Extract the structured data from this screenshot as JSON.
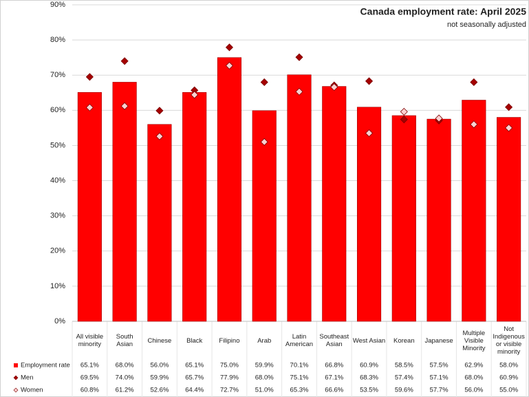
{
  "chart_data": {
    "type": "bar",
    "title": "Canada employment rate: April 2025",
    "subtitle": "not seasonally adjusted",
    "categories": [
      "All visible minority",
      "South Asian",
      "Chinese",
      "Black",
      "Filipino",
      "Arab",
      "Latin American",
      "Southeast Asian",
      "West Asian",
      "Korean",
      "Japanese",
      "Multiple Visible Minority",
      "Not Indigenous or visible minority"
    ],
    "series": [
      {
        "name": "Employment rate",
        "mark": "bar",
        "color": "#ff0000",
        "values": [
          65.1,
          68.0,
          56.0,
          65.1,
          75.0,
          59.9,
          70.1,
          66.8,
          60.9,
          58.5,
          57.5,
          62.9,
          58.0
        ],
        "value_labels": [
          "65.1%",
          "68.0%",
          "56.0%",
          "65.1%",
          "75.0%",
          "59.9%",
          "70.1%",
          "66.8%",
          "60.9%",
          "58.5%",
          "57.5%",
          "62.9%",
          "58.0%"
        ]
      },
      {
        "name": "Men",
        "mark": "diamond",
        "color": "#a50000",
        "values": [
          69.5,
          74.0,
          59.9,
          65.7,
          77.9,
          68.0,
          75.1,
          67.1,
          68.3,
          57.4,
          57.1,
          68.0,
          60.9
        ],
        "value_labels": [
          "69.5%",
          "74.0%",
          "59.9%",
          "65.7%",
          "77.9%",
          "68.0%",
          "75.1%",
          "67.1%",
          "68.3%",
          "57.4%",
          "57.1%",
          "68.0%",
          "60.9%"
        ]
      },
      {
        "name": "Women",
        "mark": "diamond",
        "color": "#ffd0d0",
        "values": [
          60.8,
          61.2,
          52.6,
          64.4,
          72.7,
          51.0,
          65.3,
          66.6,
          53.5,
          59.6,
          57.7,
          56.0,
          55.0
        ],
        "value_labels": [
          "60.8%",
          "61.2%",
          "52.6%",
          "64.4%",
          "72.7%",
          "51.0%",
          "65.3%",
          "66.6%",
          "53.5%",
          "59.6%",
          "57.7%",
          "56.0%",
          "55.0%"
        ]
      }
    ],
    "ylim": [
      0,
      90
    ],
    "yticks": [
      {
        "value": 0,
        "label": "0%"
      },
      {
        "value": 10,
        "label": "10%"
      },
      {
        "value": 20,
        "label": "20%"
      },
      {
        "value": 30,
        "label": "30%"
      },
      {
        "value": 40,
        "label": "40%"
      },
      {
        "value": 50,
        "label": "50%"
      },
      {
        "value": 60,
        "label": "60%"
      },
      {
        "value": 70,
        "label": "70%"
      },
      {
        "value": 80,
        "label": "80%"
      },
      {
        "value": 90,
        "label": "90%"
      }
    ],
    "grid": true
  }
}
